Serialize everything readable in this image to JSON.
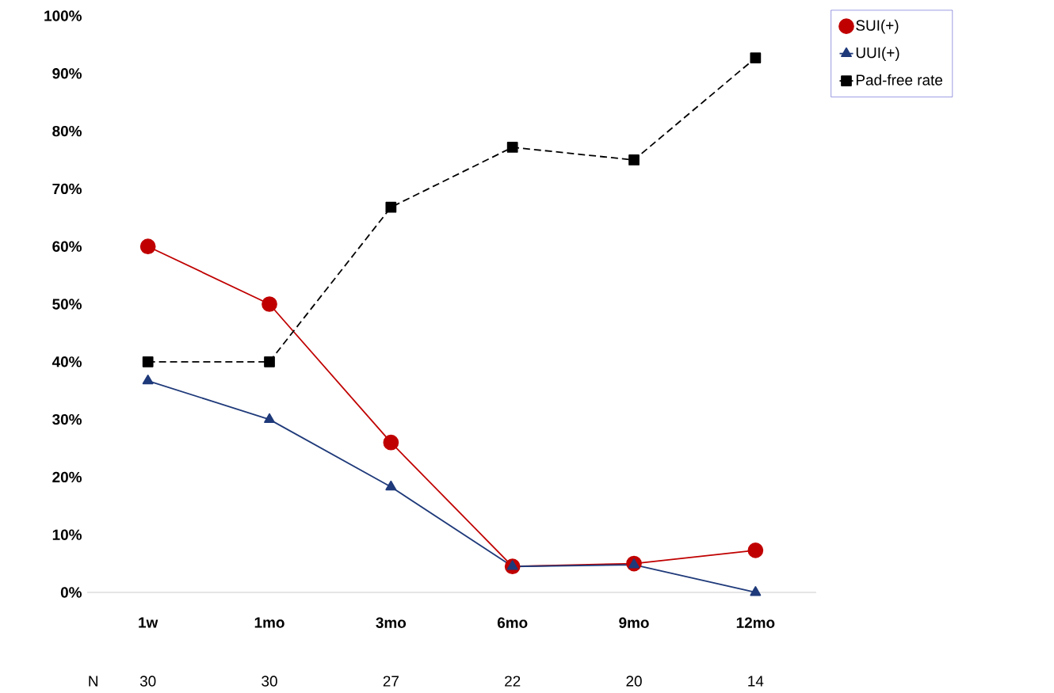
{
  "chart_data": {
    "type": "line",
    "categories": [
      "1w",
      "1mo",
      "3mo",
      "6mo",
      "9mo",
      "12mo"
    ],
    "series": [
      {
        "name": "SUI(+)",
        "color": "#c00000",
        "marker": "circle",
        "line_style": "solid",
        "values": [
          60,
          50,
          26,
          4.5,
          5,
          7.3
        ]
      },
      {
        "name": "UUI(+)",
        "color": "#1f3a7a",
        "marker": "triangle",
        "line_style": "solid",
        "values": [
          36.7,
          30,
          18.3,
          4.5,
          4.8,
          0
        ]
      },
      {
        "name": "Pad-free rate",
        "color": "#000000",
        "marker": "square",
        "line_style": "dashed",
        "values": [
          40,
          40,
          66.8,
          77.2,
          75,
          92.7
        ]
      }
    ],
    "ylim": [
      0,
      100
    ],
    "yticks": [
      {
        "value": 0,
        "label": "0%"
      },
      {
        "value": 10,
        "label": "10%"
      },
      {
        "value": 20,
        "label": "20%"
      },
      {
        "value": 30,
        "label": "30%"
      },
      {
        "value": 40,
        "label": "40%"
      },
      {
        "value": 50,
        "label": "50%"
      },
      {
        "value": 60,
        "label": "60%"
      },
      {
        "value": 70,
        "label": "70%"
      },
      {
        "value": 80,
        "label": "80%"
      },
      {
        "value": 90,
        "label": "90%"
      },
      {
        "value": 100,
        "label": "100%"
      }
    ],
    "grid": false,
    "legend": "top right",
    "annotations": [
      "N",
      "30",
      "30",
      "27",
      "22",
      "20",
      "14"
    ]
  }
}
